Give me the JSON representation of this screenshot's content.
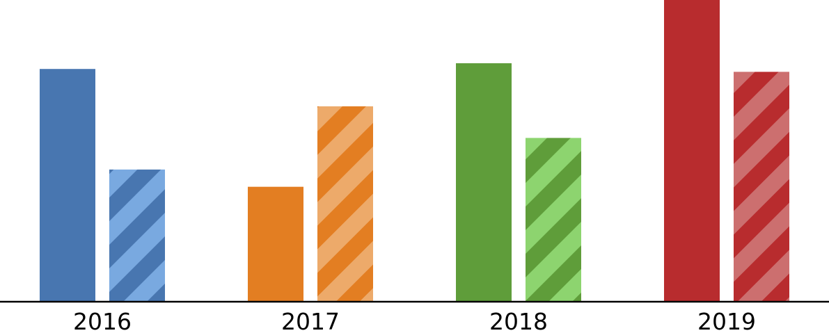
{
  "chart_data": {
    "type": "bar",
    "categories": [
      "2016",
      "2017",
      "2018",
      "2019"
    ],
    "series": [
      {
        "style": "solid",
        "values": [
          81,
          40,
          83,
          105
        ]
      },
      {
        "style": "hatched",
        "values": [
          46,
          68,
          57,
          80
        ]
      }
    ],
    "colors": [
      {
        "base": "#4876B0",
        "light": "#79A9E0"
      },
      {
        "base": "#E37E22",
        "light": "#EDAA6A"
      },
      {
        "base": "#5F9D3A",
        "light": "#8DD46F"
      },
      {
        "base": "#B82C2E",
        "light": "#CC6F6F"
      }
    ],
    "ylim": [
      0,
      105
    ],
    "grid": false,
    "legend": "none",
    "xaxis_line_color": "#000000"
  }
}
